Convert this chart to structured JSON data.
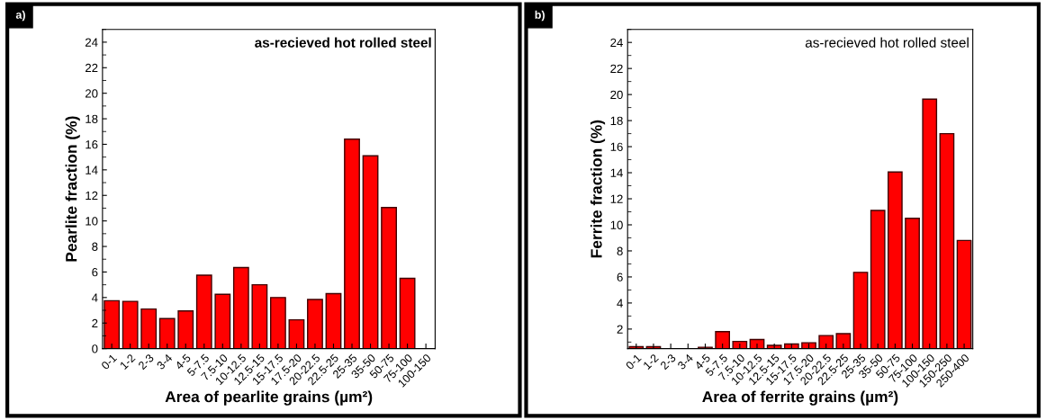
{
  "chart_data": [
    {
      "type": "bar",
      "title": "a)",
      "xlabel": "Area of pearlite grains (µm²)",
      "ylabel": "Pearlite fraction (%)",
      "annotations": [
        "as-recieved hot rolled steel"
      ],
      "categories": [
        "0-1",
        "1-2",
        "2-3",
        "3-4",
        "4-5",
        "5-7.5",
        "7.5-10",
        "10-12.5",
        "12.5-15",
        "15-17.5",
        "17.5-20",
        "20-22.5",
        "22.5-25",
        "25-35",
        "35-50",
        "50-75",
        "75-100",
        "100-150"
      ],
      "values": [
        3.75,
        3.7,
        3.1,
        2.35,
        2.95,
        5.75,
        4.25,
        6.35,
        5.0,
        4.0,
        2.25,
        3.85,
        4.3,
        16.4,
        15.1,
        11.05,
        5.5,
        null
      ],
      "color": "#ff0000",
      "ylim": [
        0,
        25
      ],
      "yticks": [
        0,
        2,
        4,
        6,
        8,
        10,
        12,
        14,
        16,
        18,
        20,
        22,
        24
      ],
      "grid": false,
      "legend": false
    },
    {
      "type": "bar",
      "title": "b)",
      "xlabel": "Area of ferrite grains (µm²)",
      "ylabel": "Ferrite fraction (%)",
      "annotations": [
        "as-recieved hot rolled steel"
      ],
      "categories": [
        "0-1",
        "1-2",
        "2-3",
        "3-4",
        "4-5",
        "5-7.5",
        "7.5-10",
        "10-12.5",
        "12.5-15",
        "15-17.5",
        "17.5-20",
        "20-22.5",
        "22.5-25",
        "25-35",
        "35-50",
        "50-75",
        "75-100",
        "100-150",
        "150-250",
        "250-400"
      ],
      "values": [
        0.65,
        0.65,
        null,
        null,
        0.6,
        1.8,
        1.05,
        1.2,
        0.75,
        0.85,
        0.95,
        1.5,
        1.65,
        6.35,
        11.1,
        14.05,
        10.5,
        19.65,
        17.0,
        8.8
      ],
      "color": "#ff0000",
      "ylim": [
        0.5,
        25
      ],
      "yticks": [
        2,
        4,
        6,
        8,
        10,
        12,
        14,
        16,
        18,
        20,
        22,
        24
      ],
      "grid": false,
      "legend": false
    }
  ]
}
